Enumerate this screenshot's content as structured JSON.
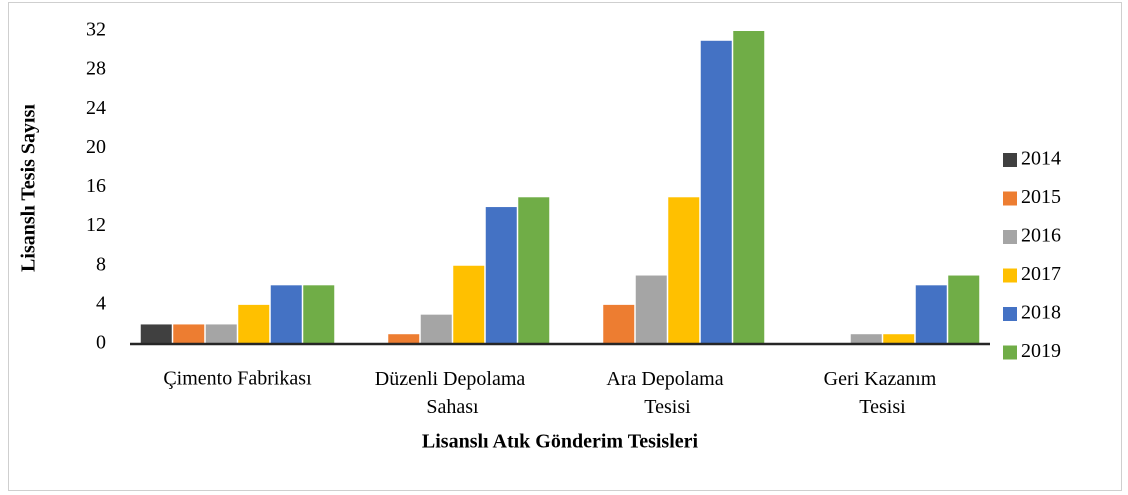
{
  "chart_data": {
    "type": "bar",
    "xlabel": "Lisanslı Atık Gönderim Tesisleri",
    "ylabel": "Lisanslı Tesis Sayısı",
    "categories": [
      "Çimento Fabrikası",
      "Düzenli Depolama Sahası",
      "Ara Depolama Tesisi",
      "Geri Kazanım Tesisi"
    ],
    "series": [
      {
        "name": "2014",
        "color": "#404040",
        "values": [
          2,
          0,
          0,
          0
        ]
      },
      {
        "name": "2015",
        "color": "#ed7d31",
        "values": [
          2,
          1,
          4,
          0
        ]
      },
      {
        "name": "2016",
        "color": "#a5a5a5",
        "values": [
          2,
          3,
          7,
          1
        ]
      },
      {
        "name": "2017",
        "color": "#ffc000",
        "values": [
          4,
          8,
          15,
          1
        ]
      },
      {
        "name": "2018",
        "color": "#4472c4",
        "values": [
          6,
          14,
          31,
          6
        ]
      },
      {
        "name": "2019",
        "color": "#70ad47",
        "values": [
          6,
          15,
          32,
          7
        ]
      }
    ],
    "ylim": [
      0,
      32
    ],
    "yticks": [
      0,
      4,
      8,
      12,
      16,
      20,
      24,
      28,
      32
    ],
    "grid": false,
    "legend": "right"
  }
}
